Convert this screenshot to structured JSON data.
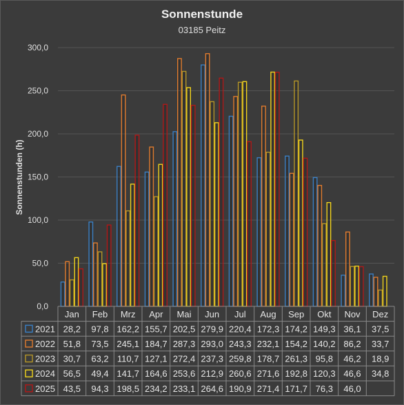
{
  "chart_data": {
    "type": "bar",
    "title": "Sonnenstunde",
    "subtitle": "03185 Peitz",
    "ylabel": "Sonnenstunden (h)",
    "ylim": [
      0,
      300
    ],
    "yticks": [
      "0,0",
      "50,0",
      "100,0",
      "150,0",
      "200,0",
      "250,0",
      "300,0"
    ],
    "categories": [
      "Jan",
      "Feb",
      "Mrz",
      "Apr",
      "Mai",
      "Jun",
      "Jul",
      "Aug",
      "Sep",
      "Okt",
      "Nov",
      "Dez"
    ],
    "grid": true,
    "legend": "data-table",
    "series": [
      {
        "name": "2021",
        "color": "#3a7fc4",
        "values": [
          28.2,
          97.8,
          162.2,
          155.7,
          202.5,
          279.9,
          220.4,
          172.3,
          174.2,
          149.3,
          36.1,
          37.5
        ],
        "labels": [
          "28,2",
          "97,8",
          "162,2",
          "155,7",
          "202,5",
          "279,9",
          "220,4",
          "172,3",
          "174,2",
          "149,3",
          "36,1",
          "37,5"
        ]
      },
      {
        "name": "2022",
        "color": "#e07b2e",
        "values": [
          51.8,
          73.5,
          245.1,
          184.7,
          287.3,
          293.0,
          243.3,
          232.1,
          154.2,
          140.2,
          86.2,
          33.7
        ],
        "labels": [
          "51,8",
          "73,5",
          "245,1",
          "184,7",
          "287,3",
          "293,0",
          "243,3",
          "232,1",
          "154,2",
          "140,2",
          "86,2",
          "33,7"
        ]
      },
      {
        "name": "2023",
        "color": "#b59628",
        "values": [
          30.7,
          63.2,
          110.7,
          127.1,
          272.4,
          237.3,
          259.8,
          178.7,
          261.3,
          95.8,
          46.2,
          18.9
        ],
        "labels": [
          "30,7",
          "63,2",
          "110,7",
          "127,1",
          "272,4",
          "237,3",
          "259,8",
          "178,7",
          "261,3",
          "95,8",
          "46,2",
          "18,9"
        ]
      },
      {
        "name": "2024",
        "color": "#f2d41c",
        "values": [
          56.5,
          49.4,
          141.7,
          164.6,
          253.6,
          212.9,
          260.6,
          271.6,
          192.8,
          120.3,
          46.6,
          34.8
        ],
        "labels": [
          "56,5",
          "49,4",
          "141,7",
          "164,6",
          "253,6",
          "212,9",
          "260,6",
          "271,6",
          "192,8",
          "120,3",
          "46,6",
          "34,8"
        ]
      },
      {
        "name": "2025",
        "color": "#b01818",
        "values": [
          43.5,
          94.3,
          198.5,
          234.2,
          233.1,
          264.6,
          190.9,
          271.4,
          171.7,
          76.3,
          46.0,
          null
        ],
        "labels": [
          "43,5",
          "94,3",
          "198,5",
          "234,2",
          "233,1",
          "264,6",
          "190,9",
          "271,4",
          "171,7",
          "76,3",
          "46,0",
          ""
        ]
      }
    ]
  }
}
